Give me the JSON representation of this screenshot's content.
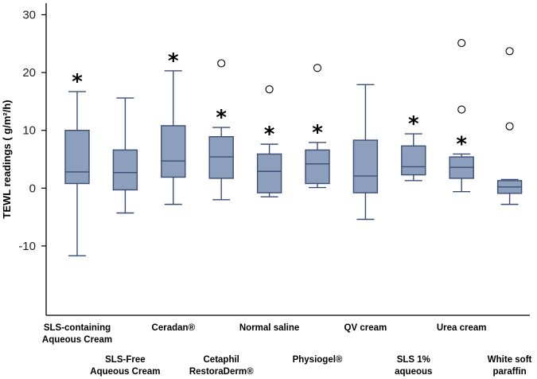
{
  "chart_data": {
    "type": "box",
    "title": "",
    "xlabel": "",
    "ylabel": "TEWL readings ( g/m²/h)",
    "ylim": [
      -22,
      32
    ],
    "yticks": [
      -10,
      0,
      10,
      20,
      30
    ],
    "ytick_labels": [
      "-10",
      "0",
      "10",
      "20",
      "30"
    ],
    "significance_marker": "*",
    "box_color": "#8c9fbd",
    "line_color": "#3d4e74",
    "categories": [
      {
        "label_lines": [
          "SLS-containing",
          "Aqueous Cream"
        ],
        "label_row": 1,
        "whisker_low": -11.7,
        "q1": 0.8,
        "median": 2.8,
        "q3": 10.0,
        "whisker_high": 16.7,
        "outliers": [],
        "significant": true
      },
      {
        "label_lines": [
          "SLS-Free",
          "Aqueous Cream"
        ],
        "label_row": 2,
        "whisker_low": -4.3,
        "q1": -0.3,
        "median": 2.7,
        "q3": 6.6,
        "whisker_high": 15.6,
        "outliers": [],
        "significant": false
      },
      {
        "label_lines": [
          "Ceradan®"
        ],
        "label_row": 1,
        "whisker_low": -2.8,
        "q1": 1.9,
        "median": 4.7,
        "q3": 10.8,
        "whisker_high": 20.3,
        "outliers": [],
        "significant": true
      },
      {
        "label_lines": [
          "Cetaphil",
          "RestoraDerm®"
        ],
        "label_row": 2,
        "whisker_low": -2.0,
        "q1": 1.7,
        "median": 5.4,
        "q3": 8.9,
        "whisker_high": 10.5,
        "outliers": [
          21.6
        ],
        "significant": true
      },
      {
        "label_lines": [
          "Normal saline"
        ],
        "label_row": 1,
        "whisker_low": -1.5,
        "q1": -0.8,
        "median": 2.9,
        "q3": 5.9,
        "whisker_high": 7.6,
        "outliers": [
          17.1
        ],
        "significant": true
      },
      {
        "label_lines": [
          "Physiogel®"
        ],
        "label_row": 2,
        "whisker_low": 0.1,
        "q1": 0.8,
        "median": 4.2,
        "q3": 6.6,
        "whisker_high": 7.9,
        "outliers": [
          20.8
        ],
        "significant": true
      },
      {
        "label_lines": [
          "QV cream"
        ],
        "label_row": 1,
        "whisker_low": -5.4,
        "q1": -0.8,
        "median": 2.1,
        "q3": 8.3,
        "whisker_high": 17.9,
        "outliers": [],
        "significant": false
      },
      {
        "label_lines": [
          "SLS 1%",
          "aqueous"
        ],
        "label_row": 2,
        "whisker_low": 1.3,
        "q1": 2.3,
        "median": 3.7,
        "q3": 7.3,
        "whisker_high": 9.4,
        "outliers": [],
        "significant": true
      },
      {
        "label_lines": [
          "Urea cream"
        ],
        "label_row": 1,
        "whisker_low": -0.6,
        "q1": 1.7,
        "median": 3.6,
        "q3": 5.4,
        "whisker_high": 5.9,
        "outliers": [
          13.6,
          25.1
        ],
        "significant": true
      },
      {
        "label_lines": [
          "White soft",
          "paraffin"
        ],
        "label_row": 2,
        "whisker_low": -2.8,
        "q1": -0.9,
        "median": 0.2,
        "q3": 1.3,
        "whisker_high": 1.5,
        "outliers": [
          10.7,
          23.7
        ],
        "significant": false
      }
    ]
  }
}
